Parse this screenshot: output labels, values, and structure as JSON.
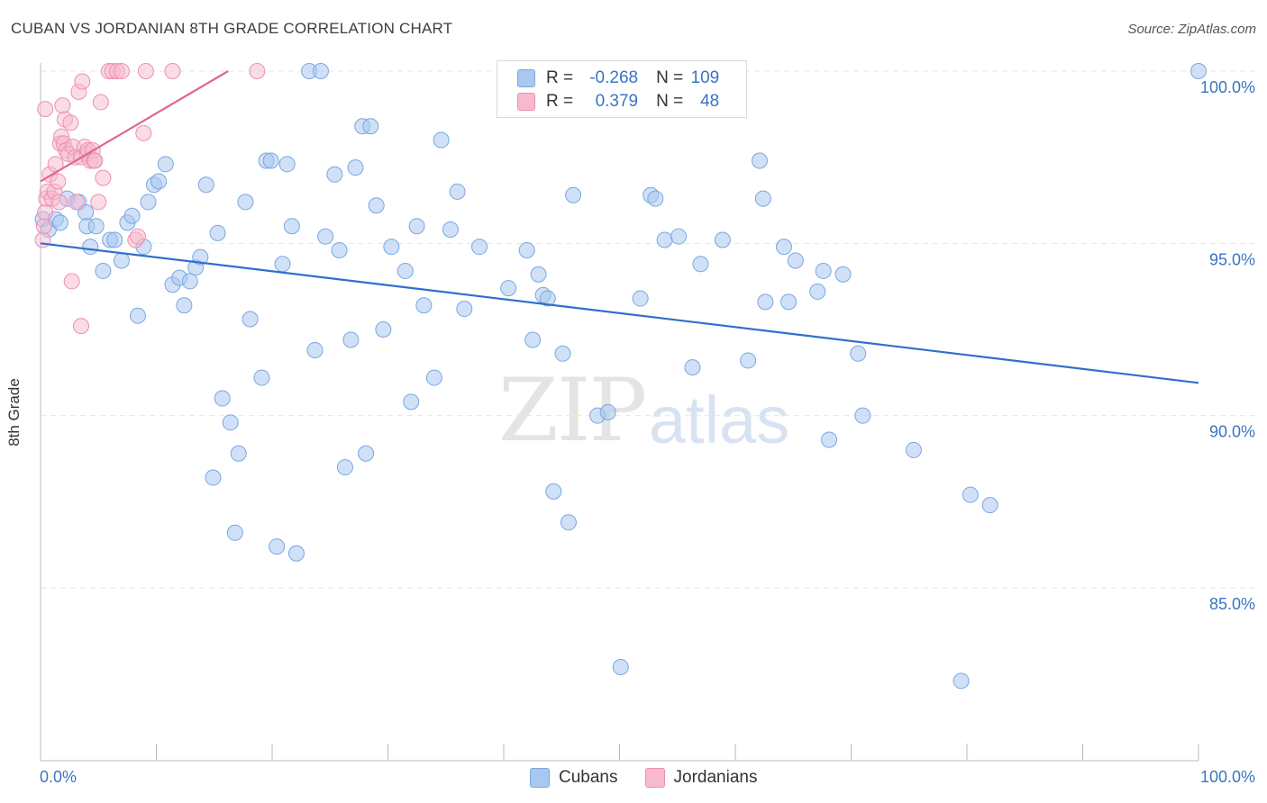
{
  "header": {
    "title": "CUBAN VS JORDANIAN 8TH GRADE CORRELATION CHART",
    "source": "Source: ZipAtlas.com"
  },
  "watermark": {
    "zip": "ZIP",
    "atlas": "atlas"
  },
  "colors": {
    "blue_fill": "#a9c8f0",
    "blue_stroke": "#7aa7e0",
    "blue_line": "#2f6fcc",
    "pink_fill": "#f6b9cd",
    "pink_stroke": "#ee8fb0",
    "pink_line": "#e06690",
    "axis_text": "#3a74c4",
    "grid": "#e6e6e6"
  },
  "legend": {
    "rows": [
      {
        "series": "Cubans",
        "r_label": "R = ",
        "r_value": "-0.268",
        "n_label": "N = ",
        "n_value": "109"
      },
      {
        "series": "Jordanians",
        "r_label": "R = ",
        "r_value": "0.379",
        "n_label": "N = ",
        "n_value": "48"
      }
    ]
  },
  "chart_data": {
    "type": "scatter",
    "title": "CUBAN VS JORDANIAN 8TH GRADE CORRELATION CHART",
    "xlabel": "",
    "ylabel": "8th Grade",
    "xlim": [
      0,
      100
    ],
    "ylim": [
      80.2,
      100.6
    ],
    "x_tick_labels": [
      "0.0%",
      "100.0%"
    ],
    "y_ticks": [
      85,
      90,
      95,
      100
    ],
    "y_tick_labels": [
      "85.0%",
      "90.0%",
      "95.0%",
      "100.0%"
    ],
    "grid": true,
    "legend_position": "bottom-center",
    "series": [
      {
        "name": "Cubans",
        "r": -0.268,
        "n": 109,
        "trend": {
          "x": [
            0,
            100
          ],
          "y": [
            95.0,
            90.95
          ]
        },
        "points": [
          [
            0.2,
            95.7
          ],
          [
            0.7,
            95.4
          ],
          [
            1.3,
            95.7
          ],
          [
            1.7,
            95.6
          ],
          [
            2.3,
            96.3
          ],
          [
            3.3,
            96.2
          ],
          [
            3.9,
            95.9
          ],
          [
            4.0,
            95.5
          ],
          [
            4.3,
            94.9
          ],
          [
            4.8,
            95.5
          ],
          [
            5.4,
            94.2
          ],
          [
            6.0,
            95.1
          ],
          [
            6.4,
            95.1
          ],
          [
            7.0,
            94.5
          ],
          [
            7.5,
            95.6
          ],
          [
            7.9,
            95.8
          ],
          [
            8.4,
            92.9
          ],
          [
            8.9,
            94.9
          ],
          [
            9.3,
            96.2
          ],
          [
            9.8,
            96.7
          ],
          [
            10.2,
            96.8
          ],
          [
            10.8,
            97.3
          ],
          [
            11.4,
            93.8
          ],
          [
            12.0,
            94.0
          ],
          [
            12.4,
            93.2
          ],
          [
            12.9,
            93.9
          ],
          [
            13.4,
            94.3
          ],
          [
            13.8,
            94.6
          ],
          [
            14.3,
            96.7
          ],
          [
            14.9,
            88.2
          ],
          [
            15.3,
            95.3
          ],
          [
            15.7,
            90.5
          ],
          [
            16.4,
            89.8
          ],
          [
            16.8,
            86.6
          ],
          [
            17.1,
            88.9
          ],
          [
            17.7,
            96.2
          ],
          [
            18.1,
            92.8
          ],
          [
            19.1,
            91.1
          ],
          [
            19.5,
            97.4
          ],
          [
            19.9,
            97.4
          ],
          [
            20.4,
            86.2
          ],
          [
            20.9,
            94.4
          ],
          [
            21.3,
            97.3
          ],
          [
            21.7,
            95.5
          ],
          [
            22.1,
            86.0
          ],
          [
            23.2,
            100.0
          ],
          [
            23.7,
            91.9
          ],
          [
            24.2,
            100.0
          ],
          [
            24.6,
            95.2
          ],
          [
            25.4,
            97.0
          ],
          [
            25.8,
            94.8
          ],
          [
            26.3,
            88.5
          ],
          [
            26.8,
            92.2
          ],
          [
            27.2,
            97.2
          ],
          [
            27.8,
            98.4
          ],
          [
            28.1,
            88.9
          ],
          [
            28.5,
            98.4
          ],
          [
            29.0,
            96.1
          ],
          [
            29.6,
            92.5
          ],
          [
            30.3,
            94.9
          ],
          [
            31.5,
            94.2
          ],
          [
            32.0,
            90.4
          ],
          [
            32.5,
            95.5
          ],
          [
            33.1,
            93.2
          ],
          [
            34.0,
            91.1
          ],
          [
            34.6,
            98.0
          ],
          [
            35.4,
            95.4
          ],
          [
            36.0,
            96.5
          ],
          [
            36.6,
            93.1
          ],
          [
            37.9,
            94.9
          ],
          [
            40.4,
            93.7
          ],
          [
            42.0,
            94.8
          ],
          [
            42.5,
            92.2
          ],
          [
            43.0,
            94.1
          ],
          [
            43.4,
            93.5
          ],
          [
            43.8,
            93.4
          ],
          [
            44.3,
            87.8
          ],
          [
            45.1,
            91.8
          ],
          [
            45.6,
            86.9
          ],
          [
            46.0,
            96.4
          ],
          [
            48.1,
            90.0
          ],
          [
            49.0,
            90.1
          ],
          [
            50.1,
            82.7
          ],
          [
            51.8,
            93.4
          ],
          [
            52.7,
            96.4
          ],
          [
            53.1,
            96.3
          ],
          [
            53.9,
            95.1
          ],
          [
            55.1,
            95.2
          ],
          [
            56.3,
            91.4
          ],
          [
            57.0,
            94.4
          ],
          [
            58.9,
            95.1
          ],
          [
            61.1,
            91.6
          ],
          [
            62.1,
            97.4
          ],
          [
            62.4,
            96.3
          ],
          [
            62.6,
            93.3
          ],
          [
            64.2,
            94.9
          ],
          [
            64.6,
            93.3
          ],
          [
            65.2,
            94.5
          ],
          [
            67.1,
            93.6
          ],
          [
            67.6,
            94.2
          ],
          [
            68.1,
            89.3
          ],
          [
            69.3,
            94.1
          ],
          [
            70.6,
            91.8
          ],
          [
            71.0,
            90.0
          ],
          [
            75.4,
            89.0
          ],
          [
            80.3,
            87.7
          ],
          [
            79.5,
            82.3
          ],
          [
            82.0,
            87.4
          ],
          [
            100.0,
            100.0
          ]
        ]
      },
      {
        "name": "Jordanians",
        "r": 0.379,
        "n": 48,
        "trend": {
          "x": [
            0,
            16.2
          ],
          "y": [
            96.8,
            100.0
          ]
        },
        "points": [
          [
            0.2,
            95.1
          ],
          [
            0.3,
            95.5
          ],
          [
            0.4,
            95.9
          ],
          [
            0.5,
            96.3
          ],
          [
            0.6,
            96.5
          ],
          [
            0.8,
            97.0
          ],
          [
            1.0,
            96.3
          ],
          [
            1.2,
            96.5
          ],
          [
            1.3,
            97.3
          ],
          [
            1.5,
            96.8
          ],
          [
            1.6,
            96.2
          ],
          [
            1.7,
            97.9
          ],
          [
            1.8,
            98.1
          ],
          [
            1.9,
            99.0
          ],
          [
            2.0,
            97.9
          ],
          [
            2.1,
            98.6
          ],
          [
            2.2,
            97.7
          ],
          [
            2.4,
            97.6
          ],
          [
            2.6,
            98.5
          ],
          [
            2.7,
            93.9
          ],
          [
            2.8,
            97.8
          ],
          [
            3.0,
            97.5
          ],
          [
            3.1,
            96.2
          ],
          [
            3.3,
            99.4
          ],
          [
            3.5,
            97.5
          ],
          [
            3.6,
            99.7
          ],
          [
            3.8,
            97.8
          ],
          [
            4.0,
            97.6
          ],
          [
            4.1,
            97.7
          ],
          [
            4.3,
            97.4
          ],
          [
            4.5,
            97.7
          ],
          [
            4.6,
            97.4
          ],
          [
            4.7,
            97.4
          ],
          [
            5.0,
            96.2
          ],
          [
            5.2,
            99.1
          ],
          [
            5.4,
            96.9
          ],
          [
            5.9,
            100.0
          ],
          [
            6.2,
            100.0
          ],
          [
            6.6,
            100.0
          ],
          [
            7.0,
            100.0
          ],
          [
            8.2,
            95.1
          ],
          [
            8.4,
            95.2
          ],
          [
            8.9,
            98.2
          ],
          [
            9.1,
            100.0
          ],
          [
            11.4,
            100.0
          ],
          [
            18.7,
            100.0
          ],
          [
            0.4,
            98.9
          ],
          [
            3.5,
            92.6
          ]
        ]
      }
    ]
  }
}
